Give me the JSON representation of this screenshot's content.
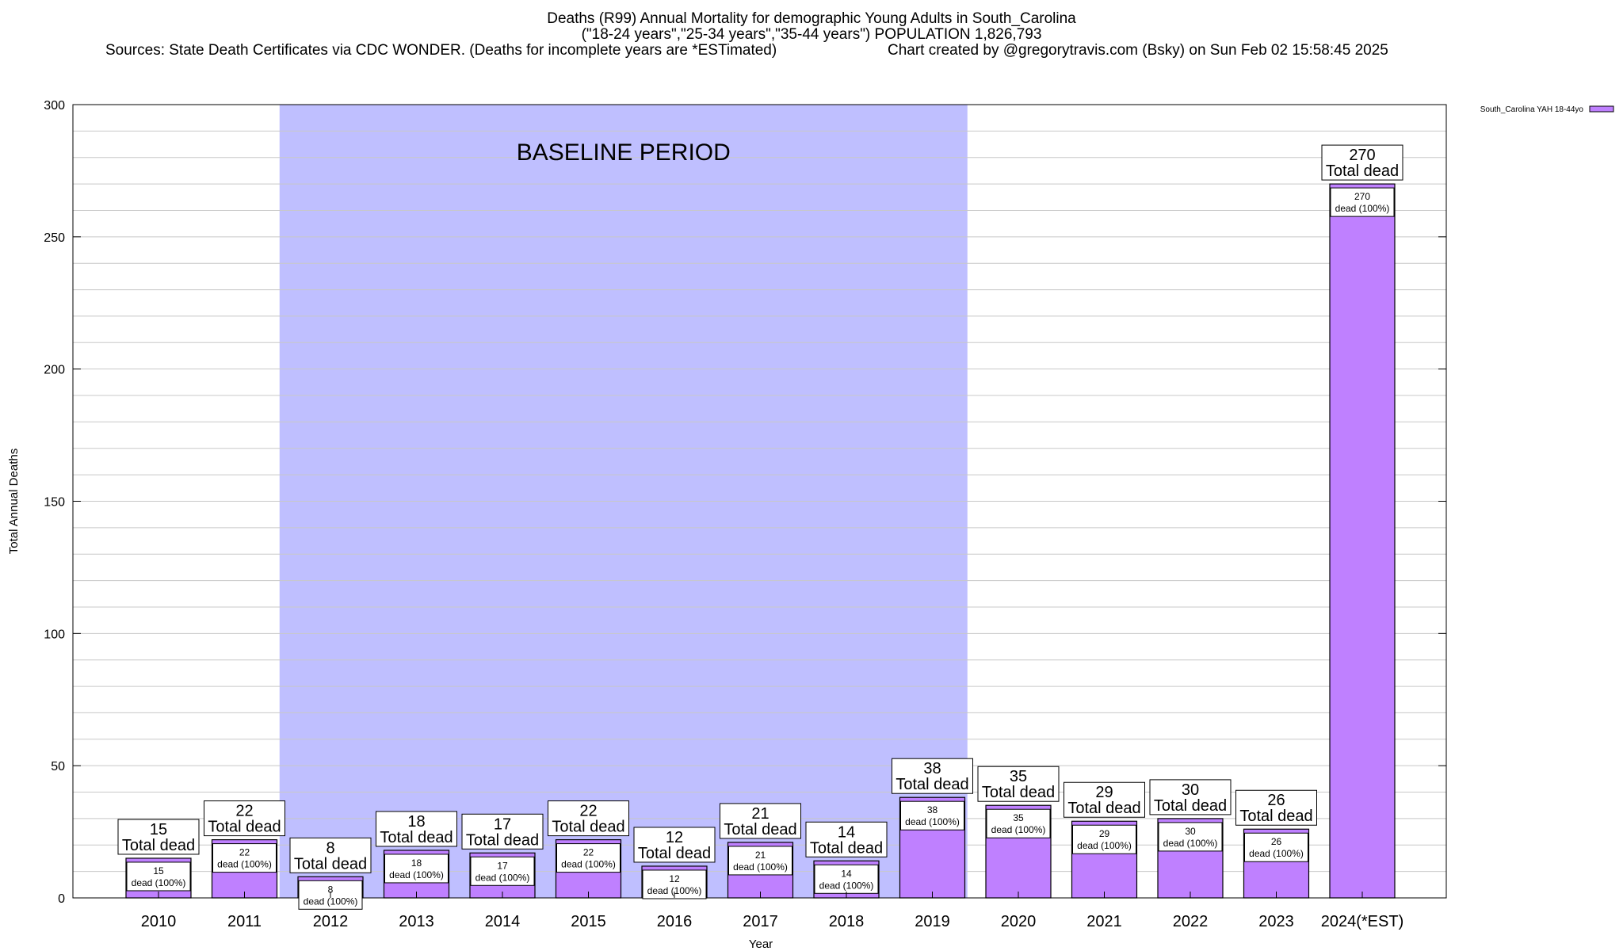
{
  "title": {
    "line1": "Deaths (R99) Annual Mortality for demographic Young Adults in South_Carolina",
    "line2": "(\"18-24 years\",\"25-34 years\",\"35-44 years\") POPULATION 1,826,793",
    "line3": "Sources: State Death Certificates via CDC WONDER. (Deaths for incomplete years are *ESTimated)",
    "line4": "Chart created by @gregorytravis.com (Bsky) on Sun Feb 02 15:58:45 2025"
  },
  "chart_data": {
    "type": "bar",
    "xlabel": "Year",
    "ylabel": "Total Annual Deaths",
    "ylim": [
      0,
      300
    ],
    "yticks": [
      0,
      50,
      100,
      150,
      200,
      250,
      300
    ],
    "grid": true,
    "legend_placement": "top-right",
    "categories": [
      "2010",
      "2011",
      "2012",
      "2013",
      "2014",
      "2015",
      "2016",
      "2017",
      "2018",
      "2019",
      "2020",
      "2021",
      "2022",
      "2023",
      "2024(*EST)"
    ],
    "series": [
      {
        "name": "South_Carolina YAH 18-44yo",
        "values": [
          15,
          22,
          8,
          18,
          17,
          22,
          12,
          21,
          14,
          38,
          35,
          29,
          30,
          26,
          270
        ],
        "color": "#bf80ff"
      }
    ],
    "total_label_suffix": "Total dead",
    "inner_label_suffix": "dead (100%)",
    "baseline": {
      "label": "BASELINE PERIOD",
      "from": "2012",
      "to": "2019",
      "color": "#bfbfff"
    }
  }
}
